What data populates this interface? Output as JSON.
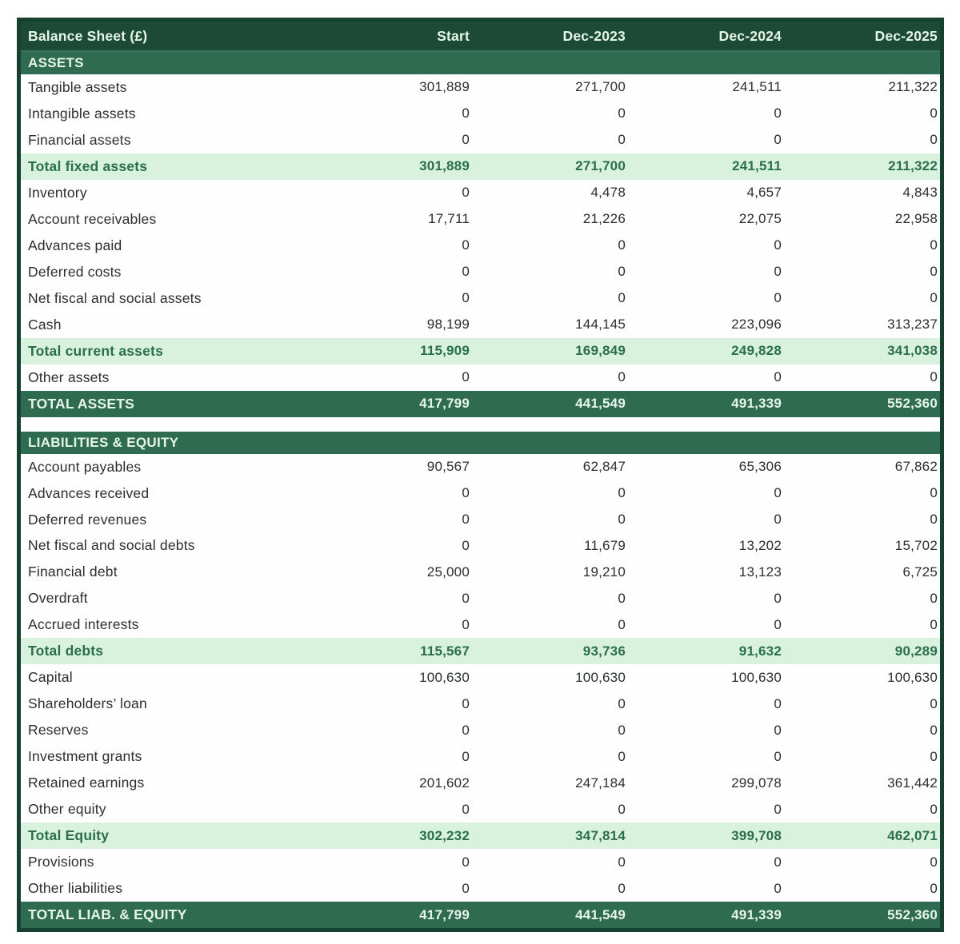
{
  "table": {
    "title": "Balance Sheet (£)",
    "columns": [
      "Start",
      "Dec-2023",
      "Dec-2024",
      "Dec-2025"
    ],
    "colors": {
      "border": "#16402f",
      "header_bg": "#1d4a37",
      "section_bg": "#2f6b51",
      "total_bg": "#2f6b51",
      "subtotal_bg": "#d9f2de",
      "subtotal_text": "#2a6e4e",
      "header_text": "#e6f5ea",
      "body_text": "#2b2e31"
    },
    "sections": [
      {
        "heading": "ASSETS",
        "rows": [
          {
            "label": "Tangible assets",
            "type": "data",
            "values": [
              "301,889",
              "271,700",
              "241,511",
              "211,322"
            ]
          },
          {
            "label": "Intangible assets",
            "type": "data",
            "values": [
              "0",
              "0",
              "0",
              "0"
            ]
          },
          {
            "label": "Financial assets",
            "type": "data",
            "values": [
              "0",
              "0",
              "0",
              "0"
            ]
          },
          {
            "label": "Total fixed assets",
            "type": "subtotal",
            "values": [
              "301,889",
              "271,700",
              "241,511",
              "211,322"
            ]
          },
          {
            "label": "Inventory",
            "type": "data",
            "values": [
              "0",
              "4,478",
              "4,657",
              "4,843"
            ]
          },
          {
            "label": "Account receivables",
            "type": "data",
            "values": [
              "17,711",
              "21,226",
              "22,075",
              "22,958"
            ]
          },
          {
            "label": "Advances paid",
            "type": "data",
            "values": [
              "0",
              "0",
              "0",
              "0"
            ]
          },
          {
            "label": "Deferred costs",
            "type": "data",
            "values": [
              "0",
              "0",
              "0",
              "0"
            ]
          },
          {
            "label": "Net fiscal and social assets",
            "type": "data",
            "values": [
              "0",
              "0",
              "0",
              "0"
            ]
          },
          {
            "label": "Cash",
            "type": "data",
            "values": [
              "98,199",
              "144,145",
              "223,096",
              "313,237"
            ]
          },
          {
            "label": "Total current assets",
            "type": "subtotal",
            "values": [
              "115,909",
              "169,849",
              "249,828",
              "341,038"
            ]
          },
          {
            "label": "Other assets",
            "type": "data",
            "values": [
              "0",
              "0",
              "0",
              "0"
            ]
          },
          {
            "label": "TOTAL ASSETS",
            "type": "total",
            "values": [
              "417,799",
              "441,549",
              "491,339",
              "552,360"
            ]
          }
        ]
      },
      {
        "heading": "LIABILITIES & EQUITY",
        "rows": [
          {
            "label": "Account payables",
            "type": "data",
            "values": [
              "90,567",
              "62,847",
              "65,306",
              "67,862"
            ]
          },
          {
            "label": "Advances received",
            "type": "data",
            "values": [
              "0",
              "0",
              "0",
              "0"
            ]
          },
          {
            "label": "Deferred revenues",
            "type": "data",
            "values": [
              "0",
              "0",
              "0",
              "0"
            ]
          },
          {
            "label": "Net fiscal and social debts",
            "type": "data",
            "values": [
              "0",
              "11,679",
              "13,202",
              "15,702"
            ]
          },
          {
            "label": "Financial debt",
            "type": "data",
            "values": [
              "25,000",
              "19,210",
              "13,123",
              "6,725"
            ]
          },
          {
            "label": "Overdraft",
            "type": "data",
            "values": [
              "0",
              "0",
              "0",
              "0"
            ]
          },
          {
            "label": "Accrued interests",
            "type": "data",
            "values": [
              "0",
              "0",
              "0",
              "0"
            ]
          },
          {
            "label": "Total debts",
            "type": "subtotal",
            "values": [
              "115,567",
              "93,736",
              "91,632",
              "90,289"
            ]
          },
          {
            "label": "Capital",
            "type": "data",
            "values": [
              "100,630",
              "100,630",
              "100,630",
              "100,630"
            ]
          },
          {
            "label": "Shareholders’ loan",
            "type": "data",
            "values": [
              "0",
              "0",
              "0",
              "0"
            ]
          },
          {
            "label": "Reserves",
            "type": "data",
            "values": [
              "0",
              "0",
              "0",
              "0"
            ]
          },
          {
            "label": "Investment grants",
            "type": "data",
            "values": [
              "0",
              "0",
              "0",
              "0"
            ]
          },
          {
            "label": "Retained earnings",
            "type": "data",
            "values": [
              "201,602",
              "247,184",
              "299,078",
              "361,442"
            ]
          },
          {
            "label": "Other equity",
            "type": "data",
            "values": [
              "0",
              "0",
              "0",
              "0"
            ]
          },
          {
            "label": "Total Equity",
            "type": "subtotal",
            "values": [
              "302,232",
              "347,814",
              "399,708",
              "462,071"
            ]
          },
          {
            "label": "Provisions",
            "type": "data",
            "values": [
              "0",
              "0",
              "0",
              "0"
            ]
          },
          {
            "label": "Other liabilities",
            "type": "data",
            "values": [
              "0",
              "0",
              "0",
              "0"
            ]
          },
          {
            "label": "TOTAL LIAB. & EQUITY",
            "type": "total",
            "values": [
              "417,799",
              "441,549",
              "491,339",
              "552,360"
            ]
          }
        ]
      }
    ]
  }
}
